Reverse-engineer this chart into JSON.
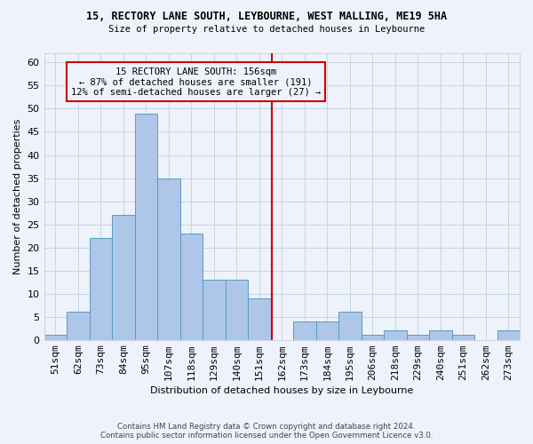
{
  "title1": "15, RECTORY LANE SOUTH, LEYBOURNE, WEST MALLING, ME19 5HA",
  "title2": "Size of property relative to detached houses in Leybourne",
  "xlabel": "Distribution of detached houses by size in Leybourne",
  "ylabel": "Number of detached properties",
  "bin_labels": [
    "51sqm",
    "62sqm",
    "73sqm",
    "84sqm",
    "95sqm",
    "107sqm",
    "118sqm",
    "129sqm",
    "140sqm",
    "151sqm",
    "162sqm",
    "173sqm",
    "184sqm",
    "195sqm",
    "206sqm",
    "218sqm",
    "229sqm",
    "240sqm",
    "251sqm",
    "262sqm",
    "273sqm"
  ],
  "bar_values": [
    1,
    6,
    22,
    27,
    49,
    35,
    23,
    13,
    13,
    9,
    0,
    4,
    4,
    6,
    1,
    2,
    1,
    2,
    1,
    0,
    2
  ],
  "bar_color": "#aec6e8",
  "bar_edge_color": "#5a9bc4",
  "grid_color": "#c8d4e8",
  "background_color": "#eef2fa",
  "vline_color": "#cc0000",
  "vline_x_idx": 9.545,
  "annotation_line1": "15 RECTORY LANE SOUTH: 156sqm",
  "annotation_line2": "← 87% of detached houses are smaller (191)",
  "annotation_line3": "12% of semi-detached houses are larger (27) →",
  "ann_box_color": "#cc0000",
  "ylim_max": 62,
  "yticks": [
    0,
    5,
    10,
    15,
    20,
    25,
    30,
    35,
    40,
    45,
    50,
    55,
    60
  ],
  "footer_line1": "Contains HM Land Registry data © Crown copyright and database right 2024.",
  "footer_line2": "Contains public sector information licensed under the Open Government Licence v3.0."
}
